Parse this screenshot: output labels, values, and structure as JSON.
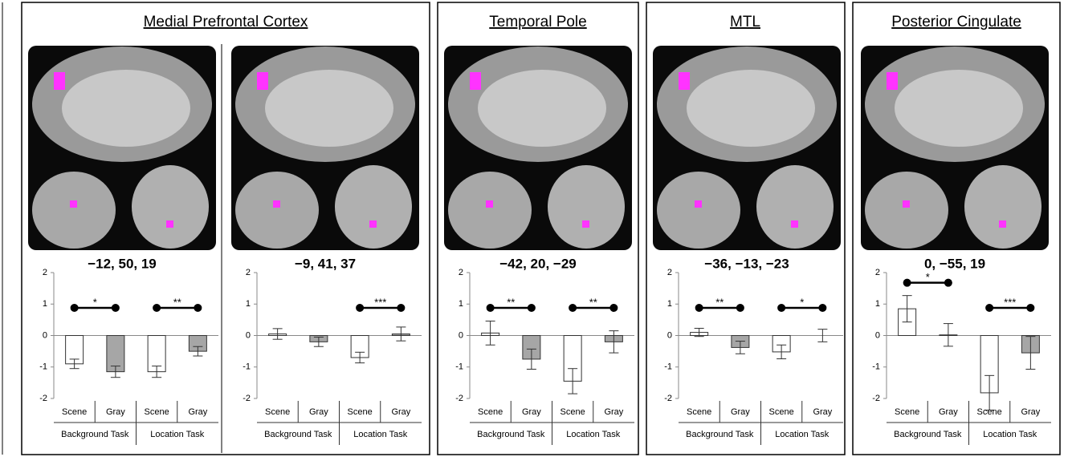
{
  "regions": [
    {
      "title": "Medial Prefrontal Cortex"
    },
    {
      "title": "Temporal Pole"
    },
    {
      "title": "MTL"
    },
    {
      "title": "Posterior Cingulate"
    }
  ],
  "chart_data": [
    {
      "type": "bar",
      "title": "−12, 50, 19",
      "categories": [
        "Scene",
        "Gray",
        "Scene",
        "Gray"
      ],
      "groups": [
        "Background Task",
        "Location Task"
      ],
      "values": [
        -0.9,
        -1.15,
        -1.15,
        -0.5
      ],
      "errors": [
        0.15,
        0.18,
        0.18,
        0.15
      ],
      "colors": [
        "#ffffff",
        "#a6a6a6",
        "#ffffff",
        "#a6a6a6"
      ],
      "ylim": [
        -2,
        2
      ],
      "yticks": [
        -2,
        -1,
        0,
        1,
        2
      ],
      "significance": [
        {
          "from": 0,
          "to": 1,
          "label": "*"
        },
        {
          "from": 2,
          "to": 3,
          "label": "**"
        }
      ]
    },
    {
      "type": "bar",
      "title": "−9, 41, 37",
      "categories": [
        "Scene",
        "Gray",
        "Scene",
        "Gray"
      ],
      "groups": [
        "Background Task",
        "Location Task"
      ],
      "values": [
        0.05,
        -0.2,
        -0.7,
        0.05
      ],
      "errors": [
        0.17,
        0.15,
        0.17,
        0.22
      ],
      "colors": [
        "#ffffff",
        "#a6a6a6",
        "#ffffff",
        "#a6a6a6"
      ],
      "ylim": [
        -2,
        2
      ],
      "yticks": [
        -2,
        -1,
        0,
        1,
        2
      ],
      "significance": [
        {
          "from": 2,
          "to": 3,
          "label": "***"
        }
      ]
    },
    {
      "type": "bar",
      "title": "−42, 20, −29",
      "categories": [
        "Scene",
        "Gray",
        "Scene",
        "Gray"
      ],
      "groups": [
        "Background Task",
        "Location Task"
      ],
      "values": [
        0.08,
        -0.75,
        -1.45,
        -0.2
      ],
      "errors": [
        0.38,
        0.32,
        0.4,
        0.35
      ],
      "colors": [
        "#ffffff",
        "#a6a6a6",
        "#ffffff",
        "#a6a6a6"
      ],
      "ylim": [
        -2,
        2
      ],
      "yticks": [
        -2,
        -1,
        0,
        1,
        2
      ],
      "significance": [
        {
          "from": 0,
          "to": 1,
          "label": "**"
        },
        {
          "from": 2,
          "to": 3,
          "label": "**"
        }
      ]
    },
    {
      "type": "bar",
      "title": "−36, −13, −23",
      "categories": [
        "Scene",
        "Gray",
        "Scene",
        "Gray"
      ],
      "groups": [
        "Background Task",
        "Location Task"
      ],
      "values": [
        0.1,
        -0.38,
        -0.52,
        0.0
      ],
      "errors": [
        0.13,
        0.2,
        0.22,
        0.2
      ],
      "colors": [
        "#ffffff",
        "#a6a6a6",
        "#ffffff",
        "#a6a6a6"
      ],
      "ylim": [
        -2,
        2
      ],
      "yticks": [
        -2,
        -1,
        0,
        1,
        2
      ],
      "significance": [
        {
          "from": 0,
          "to": 1,
          "label": "**"
        },
        {
          "from": 2,
          "to": 3,
          "label": "*"
        }
      ]
    },
    {
      "type": "bar",
      "title": "0, −55, 19",
      "categories": [
        "Scene",
        "Gray",
        "Scene",
        "Gray"
      ],
      "groups": [
        "Background Task",
        "Location Task"
      ],
      "values": [
        0.85,
        0.02,
        -1.82,
        -0.55
      ],
      "errors": [
        0.42,
        0.36,
        0.55,
        0.52
      ],
      "colors": [
        "#ffffff",
        "#a6a6a6",
        "#ffffff",
        "#a6a6a6"
      ],
      "ylim": [
        -2,
        2
      ],
      "yticks": [
        -2,
        -1,
        0,
        1,
        2
      ],
      "significance": [
        {
          "from": 0,
          "to": 1,
          "label": "*"
        },
        {
          "from": 2,
          "to": 3,
          "label": "***"
        }
      ]
    }
  ]
}
